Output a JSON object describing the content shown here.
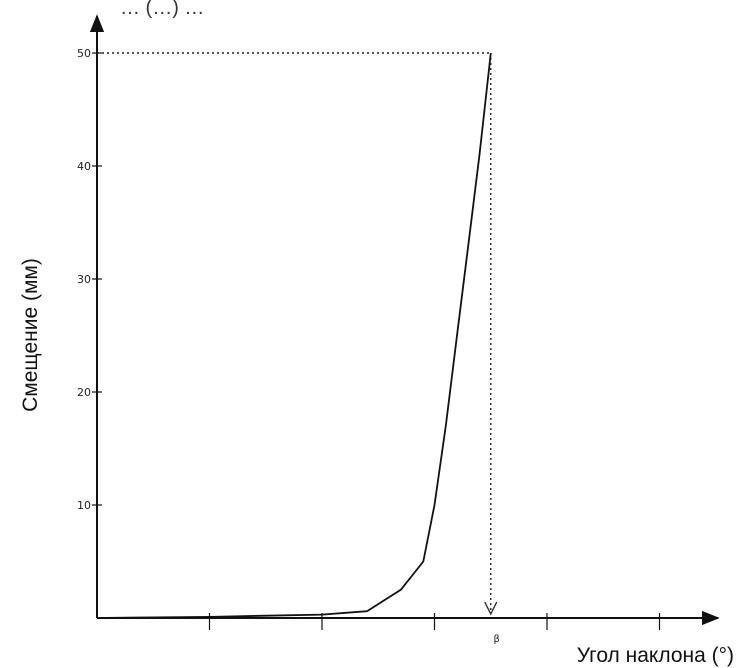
{
  "header_fragment": "… (…) …",
  "chart_data": {
    "type": "line",
    "ylabel": "Смещение   (мм)",
    "xlabel": "Угол наклона (°)",
    "y_ticks": [
      10,
      20,
      30,
      40,
      50
    ],
    "y_tick_labels": [
      "10",
      "20",
      "30",
      "40",
      "50"
    ],
    "ylim": [
      0,
      55
    ],
    "x_ticks": [
      1,
      2,
      3,
      4,
      5,
      6
    ],
    "xlim": [
      0,
      6.6
    ],
    "annotation": {
      "label": "β",
      "x": 3.5,
      "y": 50
    },
    "series": [
      {
        "points": [
          [
            0,
            0
          ],
          [
            1,
            0.1
          ],
          [
            1.5,
            0.2
          ],
          [
            2,
            0.3
          ],
          [
            2.4,
            0.6
          ],
          [
            2.7,
            2.5
          ],
          [
            2.9,
            5
          ],
          [
            3.0,
            10
          ],
          [
            3.1,
            17
          ],
          [
            3.2,
            25
          ],
          [
            3.3,
            33
          ],
          [
            3.4,
            41
          ],
          [
            3.5,
            50
          ]
        ]
      }
    ],
    "grid": false
  }
}
